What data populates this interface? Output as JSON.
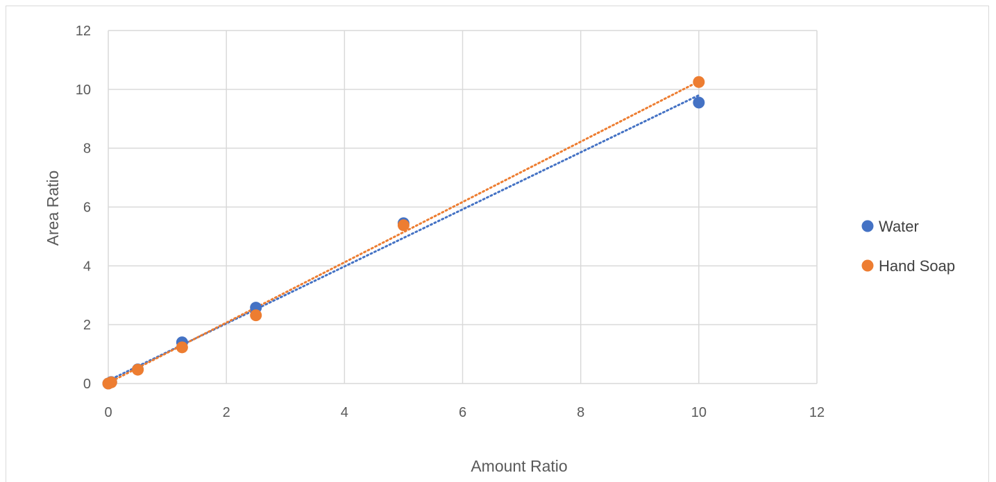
{
  "chart_data": {
    "type": "scatter",
    "title": "",
    "xlabel": "Amount Ratio",
    "ylabel": "Area Ratio",
    "xlim": [
      0,
      12
    ],
    "ylim": [
      0,
      12
    ],
    "xticks": [
      "0",
      "2",
      "4",
      "6",
      "8",
      "10",
      "12"
    ],
    "yticks": [
      "0",
      "2",
      "4",
      "6",
      "8",
      "10",
      "12"
    ],
    "grid": true,
    "legend_position": "right",
    "trendline": "linear, dotted",
    "series": [
      {
        "name": "Water",
        "color": "#4472c4",
        "points": [
          [
            0,
            0
          ],
          [
            0.05,
            0.05
          ],
          [
            0.5,
            0.48
          ],
          [
            1.25,
            1.4
          ],
          [
            2.5,
            2.58
          ],
          [
            5,
            5.45
          ],
          [
            10,
            9.55
          ]
        ],
        "trend": {
          "slope": 0.97,
          "intercept": 0.1
        }
      },
      {
        "name": "Hand Soap",
        "color": "#ed7d31",
        "points": [
          [
            0,
            0
          ],
          [
            0.05,
            0.04
          ],
          [
            0.5,
            0.47
          ],
          [
            1.25,
            1.23
          ],
          [
            2.5,
            2.32
          ],
          [
            5,
            5.38
          ],
          [
            10,
            10.25
          ]
        ],
        "trend": {
          "slope": 1.025,
          "intercept": 0.02
        }
      }
    ]
  }
}
